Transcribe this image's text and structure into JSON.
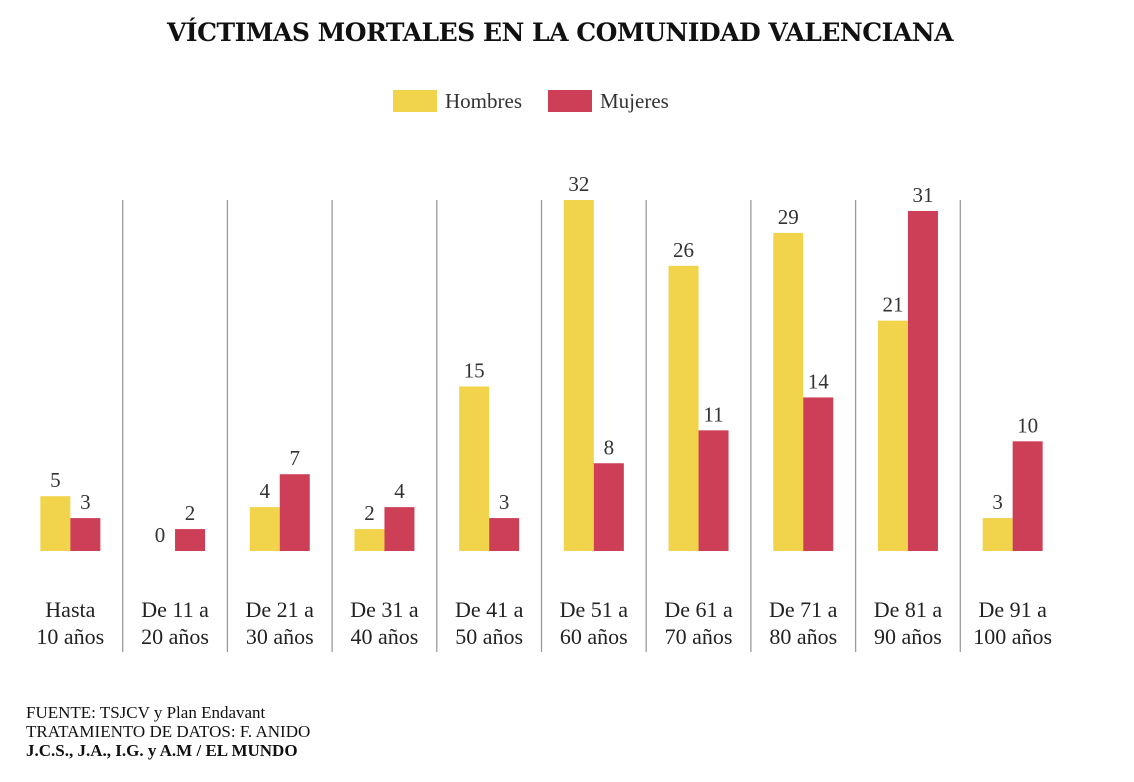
{
  "chart_data": {
    "type": "bar",
    "title": "VÍCTIMAS MORTALES EN LA COMUNIDAD VALENCIANA",
    "categories": [
      [
        "Hasta",
        "10 años"
      ],
      [
        "De 11 a",
        "20 años"
      ],
      [
        "De 21 a",
        "30 años"
      ],
      [
        "De 31 a",
        "40 años"
      ],
      [
        "De 41 a",
        "50 años"
      ],
      [
        "De 51 a",
        "60 años"
      ],
      [
        "De 61 a",
        "70 años"
      ],
      [
        "De 71 a",
        "80 años"
      ],
      [
        "De 81 a",
        "90 años"
      ],
      [
        "De 91 a",
        "100 años"
      ]
    ],
    "series": [
      {
        "name": "Hombres",
        "color": "#f2d34c",
        "values": [
          5,
          0,
          4,
          2,
          15,
          32,
          26,
          29,
          21,
          3
        ]
      },
      {
        "name": "Mujeres",
        "color": "#cc3f56",
        "values": [
          3,
          2,
          7,
          4,
          3,
          8,
          11,
          14,
          31,
          10
        ]
      }
    ],
    "xlabel": "",
    "ylabel": "",
    "ylim": [
      0,
      32
    ],
    "grid": false,
    "legend": "top-center",
    "separator_color": "#9a9a9a"
  },
  "footer": {
    "source": "FUENTE:  TSJCV y Plan Endavant",
    "data_processing": "TRATAMIENTO DE DATOS: F. ANIDO",
    "credit": "J.C.S., J.A., I.G. y A.M / EL MUNDO"
  }
}
